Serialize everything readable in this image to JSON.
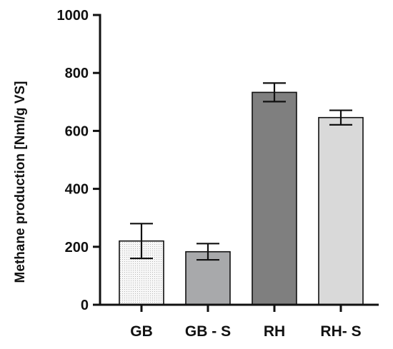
{
  "chart_data": {
    "type": "bar",
    "title": "",
    "xlabel": "",
    "ylabel": "Methane production [Nml/g VS]",
    "ylim": [
      0,
      1000
    ],
    "yticks": [
      0,
      200,
      400,
      600,
      800,
      1000
    ],
    "ytick_labels": [
      "0",
      "200",
      "400",
      "600",
      "800",
      "1000"
    ],
    "categories": [
      "GB",
      "GB - S",
      "RH",
      "RH- S"
    ],
    "values": [
      220,
      183,
      733,
      646
    ],
    "errors": [
      60,
      28,
      32,
      25
    ],
    "bar_colors": [
      "#f6f6f6",
      "#a8a9ab",
      "#7f7f7f",
      "#d9d9d9"
    ],
    "bar_patterns": [
      "dotted",
      "solid",
      "solid",
      "solid"
    ],
    "grid": false,
    "legend": "none"
  }
}
